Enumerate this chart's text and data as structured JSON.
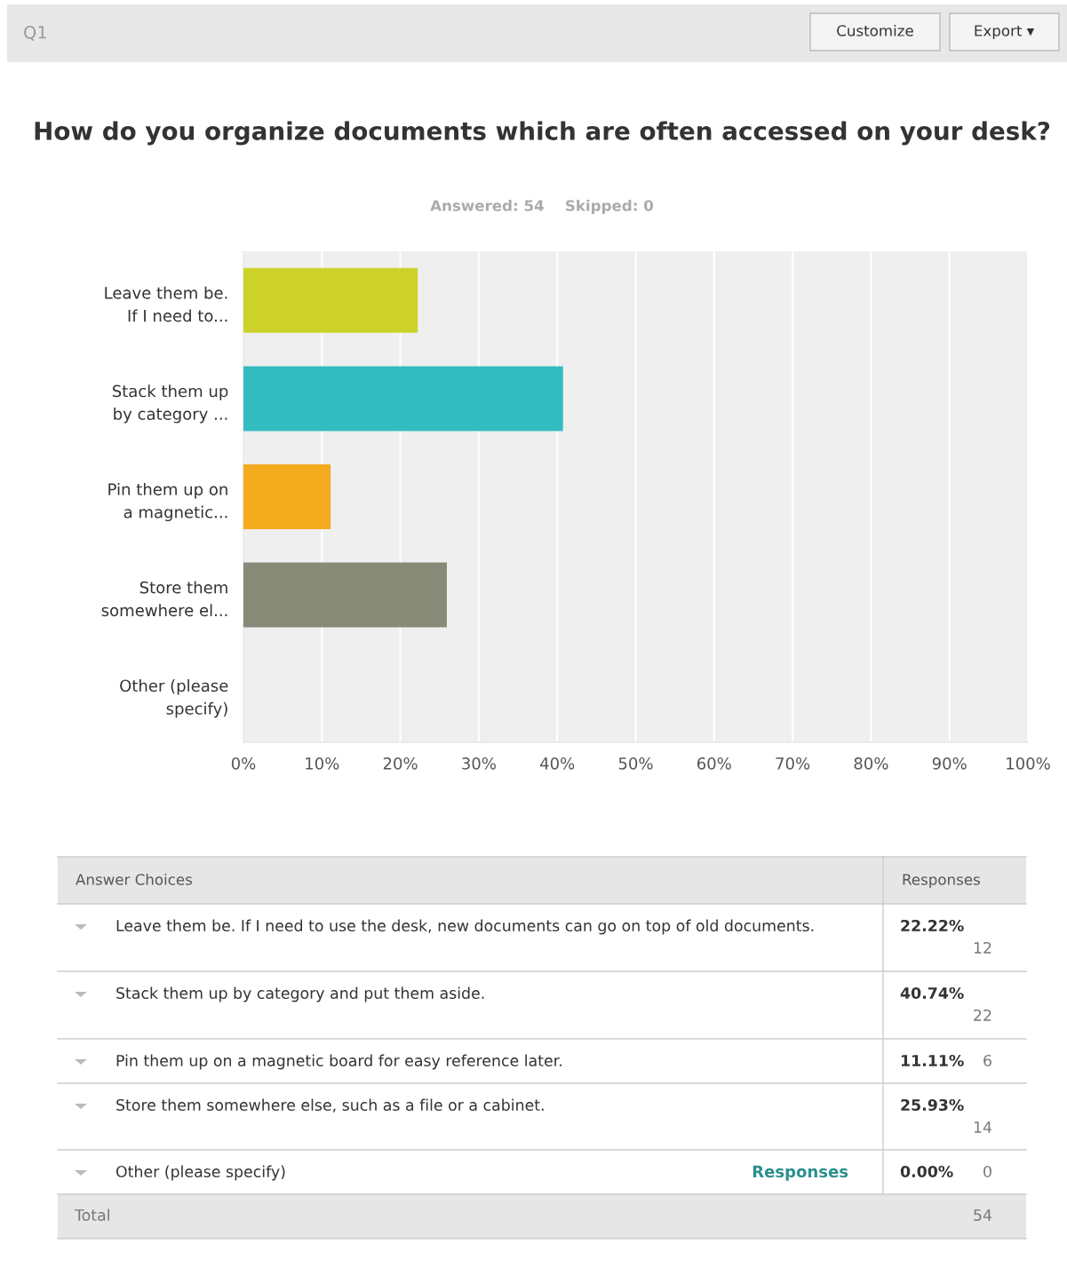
{
  "chart_data": {
    "type": "bar",
    "orientation": "horizontal",
    "title": "How do you organize documents which are often accessed on your desk?",
    "subtitle": "Answered: 54    Skipped: 0",
    "categories": [
      "Leave them be.\nIf I need to...",
      "Stack them up\nby category ...",
      "Pin them up on\na magnetic...",
      "Store them\nsomewhere el...",
      "Other (please\nspecify)"
    ],
    "values": [
      22.22,
      40.74,
      11.11,
      25.93,
      0
    ],
    "colors": [
      "#cdd22a",
      "#33bcc0",
      "#f5ab1e",
      "#888a78",
      "#8e5ea2"
    ],
    "xlim": [
      0,
      100
    ],
    "xticks": [
      {
        "value": 0,
        "label": "0%"
      },
      {
        "value": 10,
        "label": "10%"
      },
      {
        "value": 20,
        "label": "20%"
      },
      {
        "value": 30,
        "label": "30%"
      },
      {
        "value": 40,
        "label": "40%"
      },
      {
        "value": 50,
        "label": "50%"
      },
      {
        "value": 60,
        "label": "60%"
      },
      {
        "value": 70,
        "label": "70%"
      },
      {
        "value": 80,
        "label": "80%"
      },
      {
        "value": 90,
        "label": "90%"
      },
      {
        "value": 100,
        "label": "100%"
      }
    ],
    "grid": "x",
    "annotations": [
      "Q1",
      "Customize",
      "Export ▾",
      "Answer Choices",
      "Responses",
      "Leave them be. If I need to use the desk, new documents can go on top of old documents.",
      "Stack them up by category and put them aside.",
      "Pin them up on a magnetic board for easy reference later.",
      "Store them somewhere else, such as a file or a cabinet.",
      "Other (please specify)",
      "22.22%",
      "40.74%",
      "11.11%",
      "25.93%",
      "0.00%",
      "12",
      "22",
      "6",
      "14",
      "0",
      "Responses",
      "Total",
      "54"
    ]
  }
}
